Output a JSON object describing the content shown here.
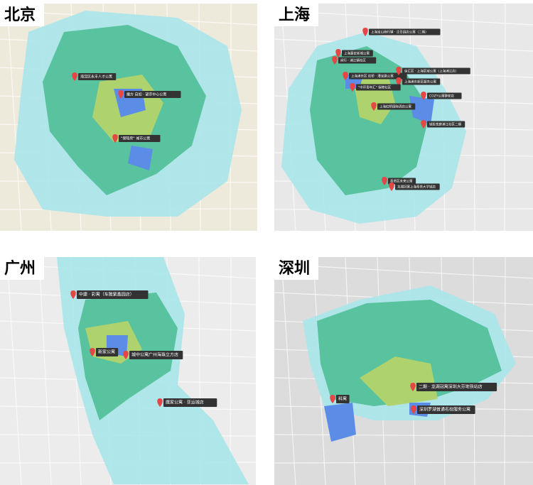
{
  "maps": [
    {
      "city": "北京",
      "markers": [
        {
          "label": "海淀区永丰人才公寓"
        },
        {
          "label": "魔方 自如 · 望京中心公寓"
        },
        {
          "label": "\"保障房\" 城市公寓"
        }
      ]
    },
    {
      "city": "上海",
      "markers": [
        {
          "label": "上海宝山杨行镇 · 泛日园店公寓（二期）"
        },
        {
          "label": "上海嘉定新城公寓"
        },
        {
          "label": "闵行 · 浦江镇社区"
        },
        {
          "label": "上海浦东区 虹桥 · 漕宝路公寓"
        },
        {
          "label": "徐汇区 · 上海区域公寓（上海浦江店）"
        },
        {
          "label": "上海浦东新区服务公寓"
        },
        {
          "label": "\"中环青年汇\" 保障社区"
        },
        {
          "label": "COZY公寓静安店"
        },
        {
          "label": "上海虹桥国际酒店公寓"
        },
        {
          "label": "城投宽庭浦江社区二期"
        },
        {
          "label": "奉贤区未来公寓"
        },
        {
          "label": "龙湖冠寓上海奉贤大学城店"
        }
      ]
    },
    {
      "city": "广州",
      "markers": [
        {
          "label": "中建 · 彩寓（车陂紫鑫园店）"
        },
        {
          "label": "新家公寓"
        },
        {
          "label": "城中公寓广州海珠立方店"
        },
        {
          "label": "魔家公寓 · 亚运城店"
        }
      ]
    },
    {
      "city": "深圳",
      "markers": [
        {
          "label": "科寓"
        },
        {
          "label": "二期 · 龙湖冠寓深圳大芬地铁站店"
        },
        {
          "label": "深圳罗湖普通名校服务公寓"
        }
      ]
    }
  ]
}
